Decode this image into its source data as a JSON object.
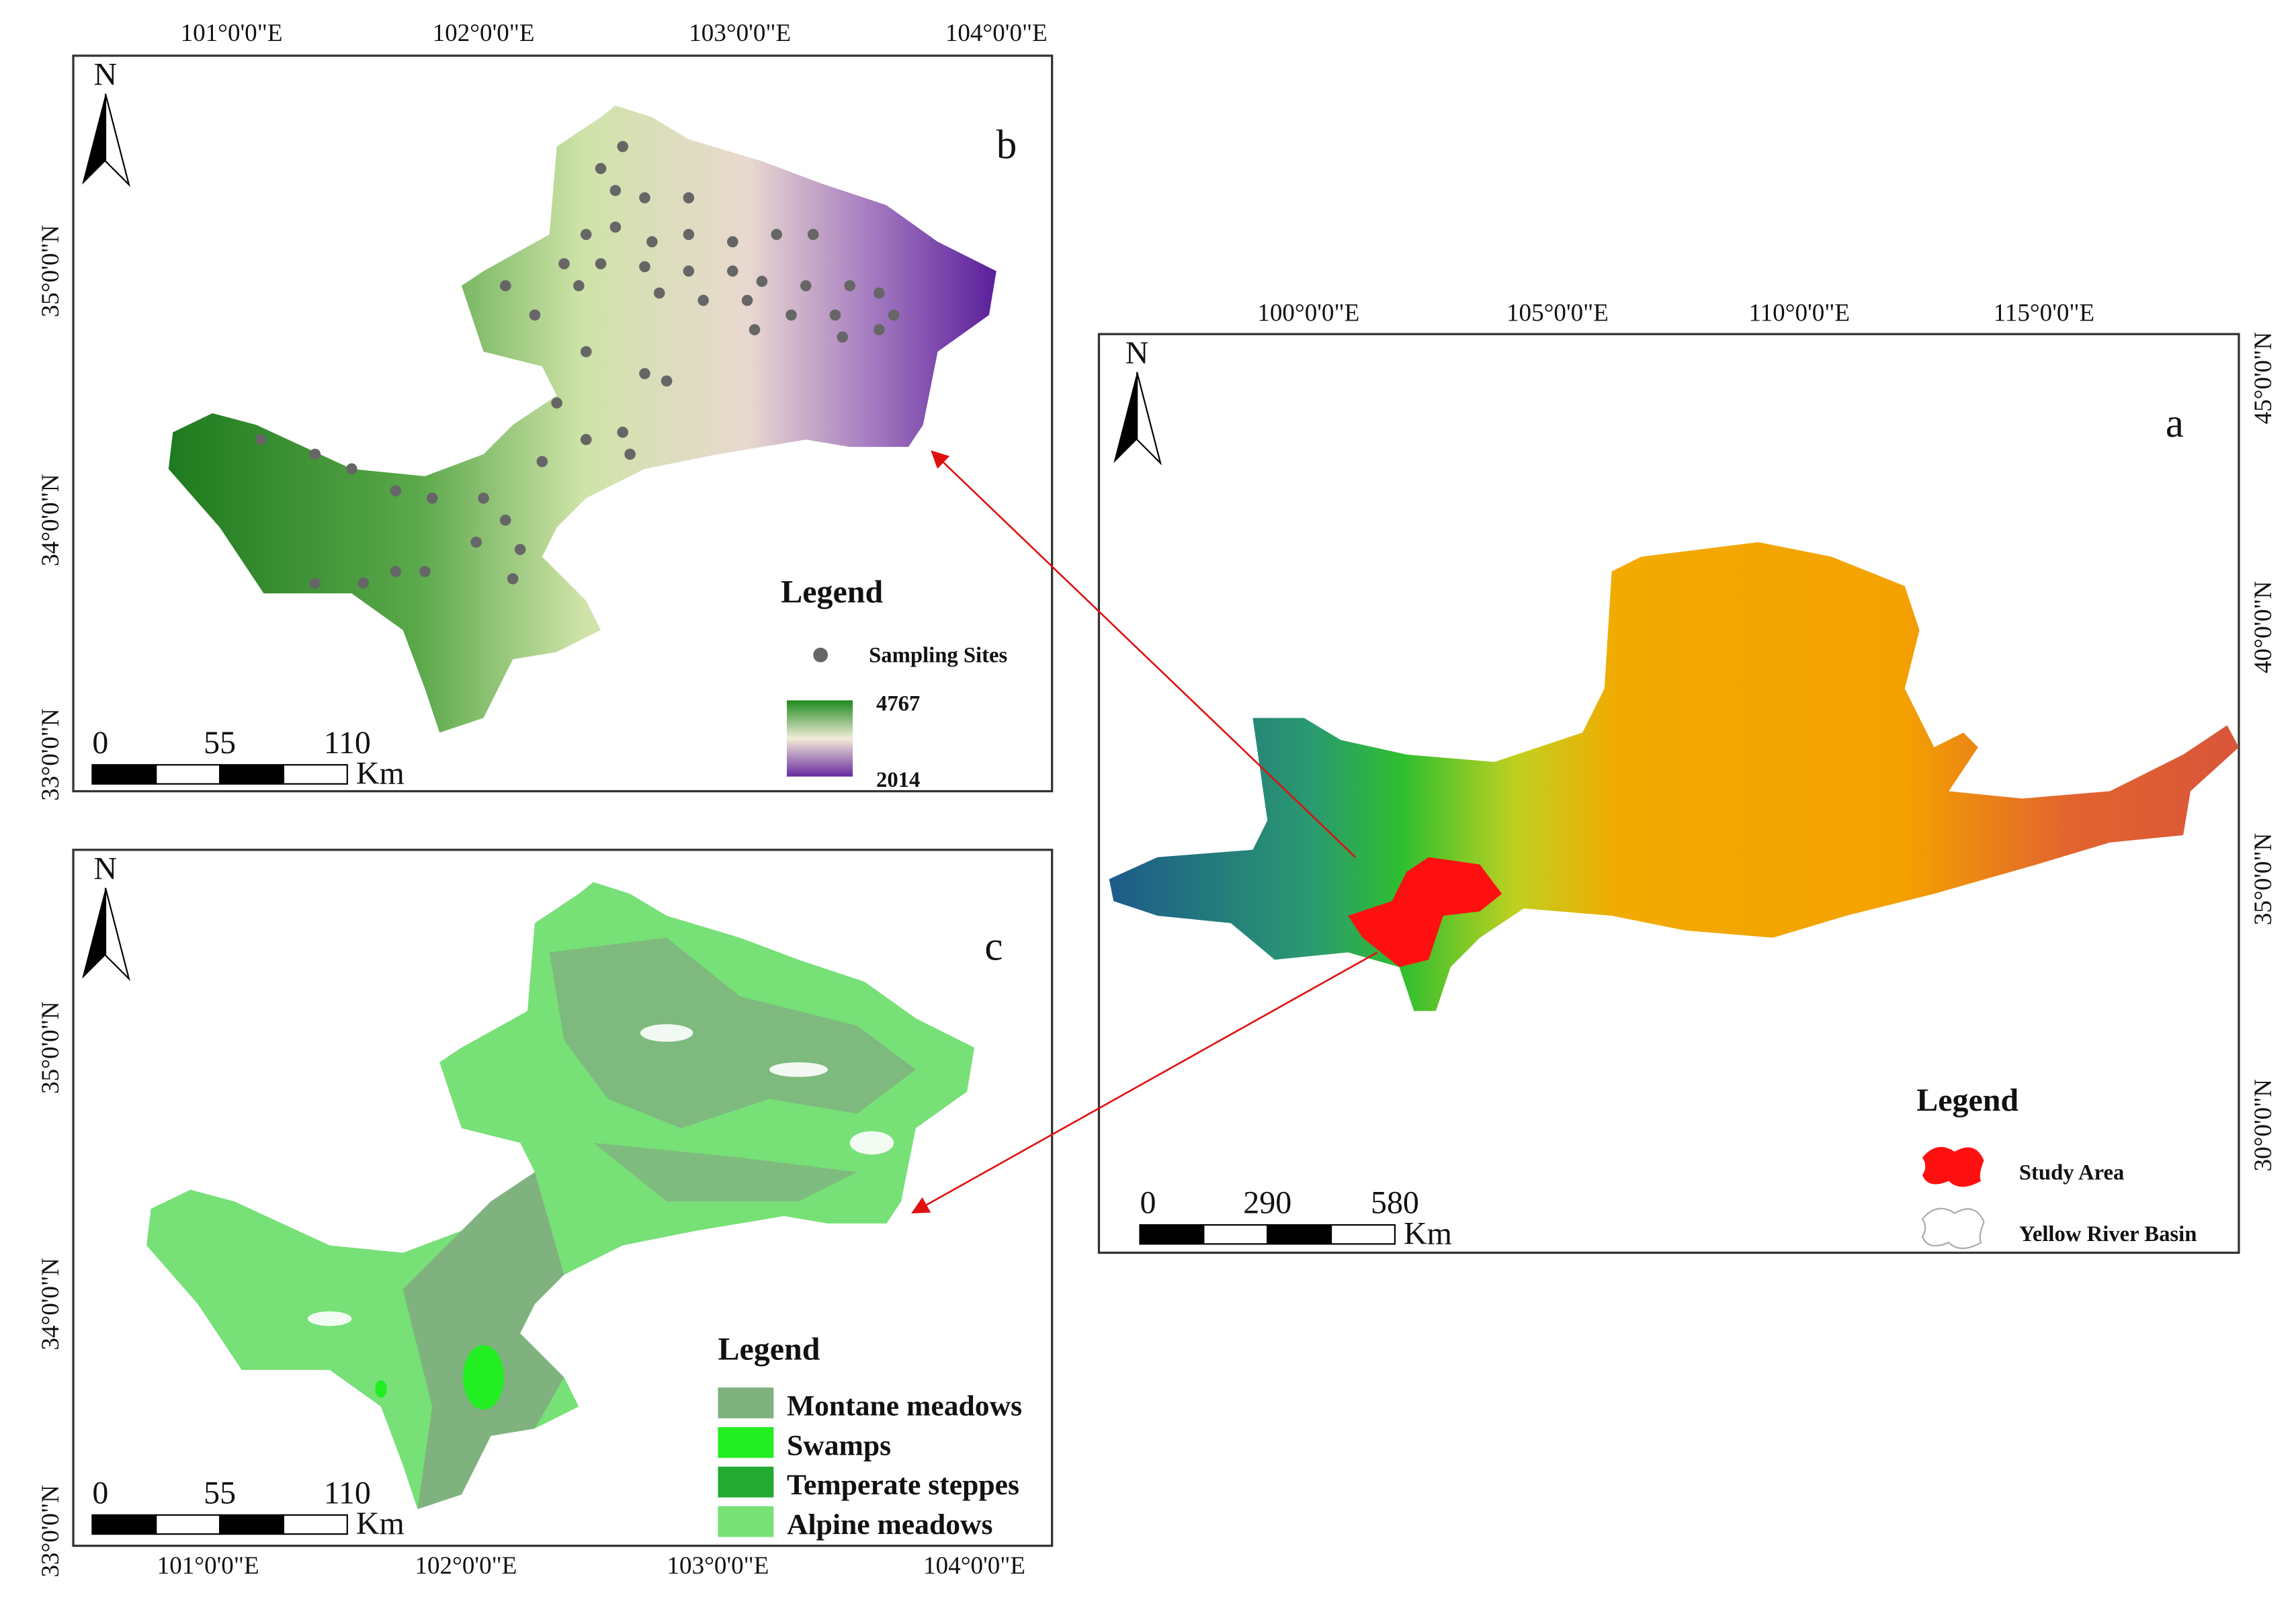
{
  "panels": {
    "a": {
      "label": "a",
      "north": "N",
      "x_labels": [
        "100°0'0\"E",
        "105°0'0\"E",
        "110°0'0\"E",
        "115°0'0\"E"
      ],
      "y_labels": [
        "45°0'0\"N",
        "40°0'0\"N",
        "35°0'0\"N",
        "30°0'0\"N"
      ],
      "legend": {
        "title": "Legend",
        "items": [
          "Study Area",
          "Yellow River Basin"
        ]
      },
      "scale": {
        "ticks": [
          0,
          290,
          580
        ],
        "unit": "Km"
      }
    },
    "b": {
      "label": "b",
      "north": "N",
      "x_labels": [
        "101°0'0\"E",
        "102°0'0\"E",
        "103°0'0\"E",
        "104°0'0\"E"
      ],
      "y_labels": [
        "35°0'0\"N",
        "34°0'0\"N",
        "33°0'0\"N"
      ],
      "legend": {
        "title": "Legend",
        "sites": "Sampling Sites",
        "max": 4767,
        "min": 2014
      },
      "scale": {
        "ticks": [
          0,
          55,
          110
        ],
        "unit": "Km"
      }
    },
    "c": {
      "label": "c",
      "north": "N",
      "x_labels": [
        "101°0'0\"E",
        "102°0'0\"E",
        "103°0'0\"E",
        "104°0'0\"E"
      ],
      "y_labels": [
        "35°0'0\"N",
        "34°0'0\"N",
        "33°0'0\"N"
      ],
      "legend": {
        "title": "Legend",
        "items": [
          "Montane meadows",
          "Swamps",
          "Temperate steppes",
          "Alpine meadows"
        ]
      },
      "scale": {
        "ticks": [
          0,
          55,
          110
        ],
        "unit": "Km"
      }
    }
  }
}
